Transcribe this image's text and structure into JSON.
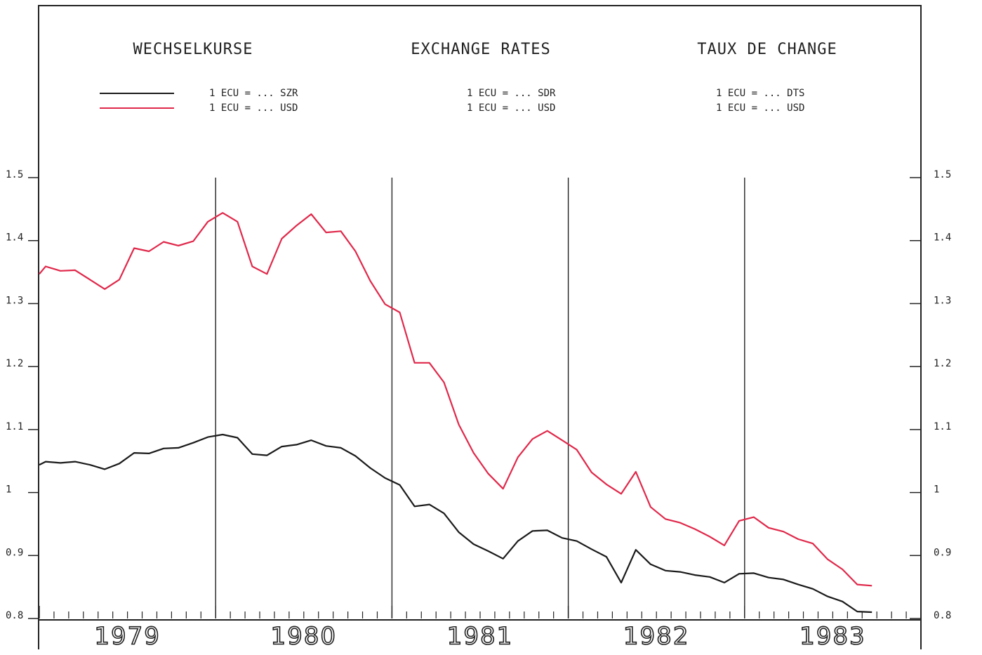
{
  "chart_data": {
    "type": "line",
    "titles": [
      "WECHSELKURSE",
      "EXCHANGE RATES",
      "TAUX DE CHANGE"
    ],
    "x": [
      1979.0,
      1979.036,
      1979.12,
      1979.203,
      1979.287,
      1979.371,
      1979.454,
      1979.538,
      1979.622,
      1979.705,
      1979.789,
      1979.873,
      1979.956,
      1980.04,
      1980.124,
      1980.208,
      1980.291,
      1980.375,
      1980.459,
      1980.542,
      1980.626,
      1980.71,
      1980.793,
      1980.877,
      1980.961,
      1981.044,
      1981.128,
      1981.212,
      1981.295,
      1981.379,
      1981.463,
      1981.546,
      1981.63,
      1981.714,
      1981.797,
      1981.881,
      1981.965,
      1982.048,
      1982.132,
      1982.216,
      1982.3,
      1982.383,
      1982.467,
      1982.551,
      1982.634,
      1982.718,
      1982.802,
      1982.885,
      1982.969,
      1983.052,
      1983.136,
      1983.22,
      1983.304,
      1983.387,
      1983.471,
      1983.555,
      1983.639,
      1983.722
    ],
    "series": [
      {
        "names": [
          "1 ECU = ... SZR",
          "1 ECU = ... SDR",
          "1 ECU = ... DTS"
        ],
        "color": "#1a1a1a",
        "values": [
          1.044,
          1.049,
          1.047,
          1.049,
          1.044,
          1.037,
          1.046,
          1.063,
          1.062,
          1.07,
          1.071,
          1.079,
          1.088,
          1.092,
          1.087,
          1.061,
          1.059,
          1.073,
          1.076,
          1.083,
          1.074,
          1.071,
          1.058,
          1.039,
          1.023,
          1.012,
          0.978,
          0.981,
          0.967,
          0.937,
          0.918,
          0.907,
          0.895,
          0.923,
          0.939,
          0.94,
          0.928,
          0.923,
          0.91,
          0.898,
          0.857,
          0.909,
          0.886,
          0.876,
          0.874,
          0.869,
          0.866,
          0.857,
          0.871,
          0.872,
          0.865,
          0.862,
          0.854,
          0.847,
          0.835,
          0.827,
          0.811,
          0.81
        ]
      },
      {
        "names": [
          "1 ECU = ... USD",
          "1 ECU = ... USD",
          "1 ECU = ... USD"
        ],
        "color": "#e0284a",
        "values": [
          1.347,
          1.359,
          1.352,
          1.353,
          1.338,
          1.323,
          1.338,
          1.388,
          1.383,
          1.398,
          1.392,
          1.399,
          1.43,
          1.444,
          1.43,
          1.359,
          1.347,
          1.403,
          1.424,
          1.442,
          1.413,
          1.415,
          1.383,
          1.336,
          1.299,
          1.286,
          1.206,
          1.206,
          1.175,
          1.108,
          1.063,
          1.03,
          1.006,
          1.056,
          1.085,
          1.098,
          1.083,
          1.068,
          1.032,
          1.013,
          0.998,
          1.033,
          0.977,
          0.958,
          0.952,
          0.942,
          0.93,
          0.916,
          0.955,
          0.961,
          0.944,
          0.938,
          0.926,
          0.919,
          0.894,
          0.878,
          0.854,
          0.852
        ]
      }
    ],
    "xlim": [
      1979,
      1984
    ],
    "xticks": [
      1979,
      1980,
      1981,
      1982,
      1983
    ],
    "ylim": [
      0.8,
      1.5
    ],
    "yticks": [
      0.8,
      0.9,
      1,
      1.1,
      1.2,
      1.3,
      1.4,
      1.5
    ],
    "grid": true
  }
}
